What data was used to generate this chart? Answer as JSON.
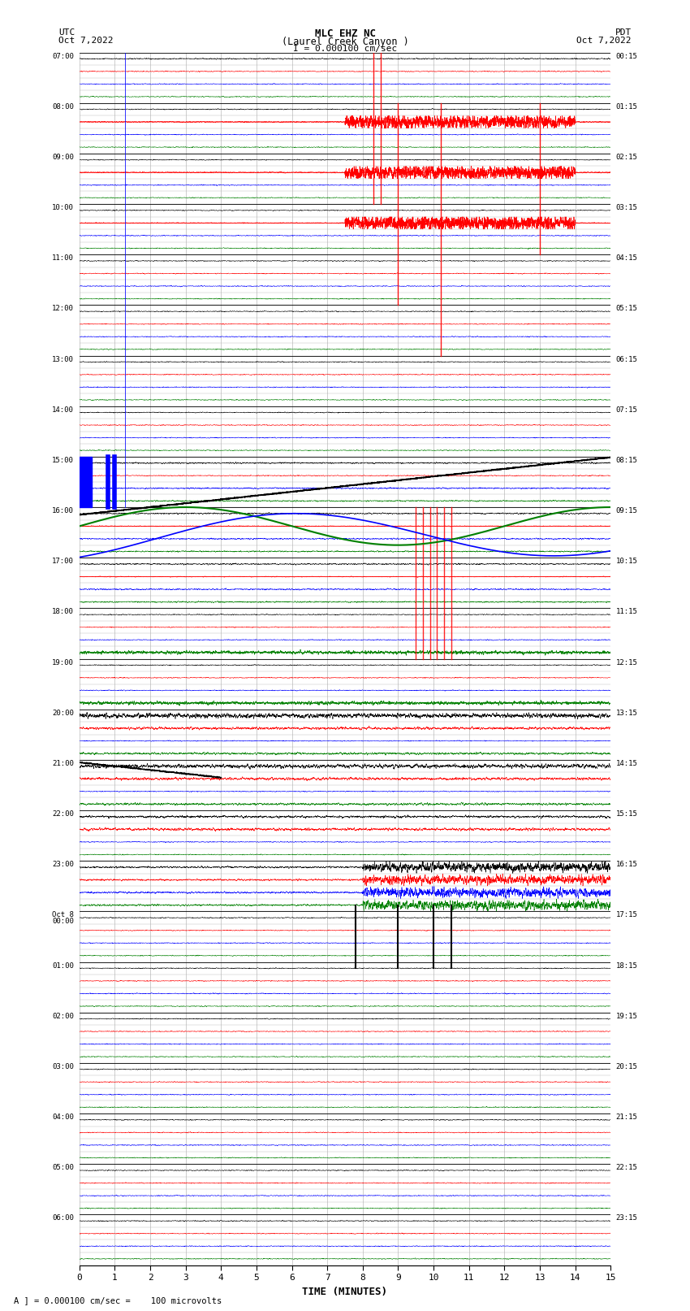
{
  "title_line1": "MLC EHZ NC",
  "title_line2": "(Laurel Creek Canyon )",
  "scale_text": "I = 0.000100 cm/sec",
  "left_header_line1": "UTC",
  "left_header_line2": "Oct 7,2022",
  "right_header_line1": "PDT",
  "right_header_line2": "Oct 7,2022",
  "xlabel": "TIME (MINUTES)",
  "footer": "A ] = 0.000100 cm/sec =    100 microvolts",
  "xlim": [
    0,
    15
  ],
  "xticks": [
    0,
    1,
    2,
    3,
    4,
    5,
    6,
    7,
    8,
    9,
    10,
    11,
    12,
    13,
    14,
    15
  ],
  "num_rows": 44,
  "bg_color": "#ffffff",
  "grid_color": "#aaaaaa",
  "seed": 42,
  "left_labels_utc": [
    "07:00",
    "",
    "",
    "",
    "08:00",
    "",
    "",
    "",
    "09:00",
    "",
    "",
    "",
    "10:00",
    "",
    "",
    "",
    "11:00",
    "",
    "",
    "",
    "12:00",
    "",
    "",
    "",
    "13:00",
    "",
    "",
    "",
    "14:00",
    "",
    "",
    "",
    "15:00",
    "",
    "",
    "",
    "16:00",
    "",
    "",
    "",
    "17:00",
    "",
    "",
    "",
    "18:00",
    "",
    "",
    "",
    "19:00",
    "",
    "",
    "",
    "20:00",
    "",
    "",
    "",
    "21:00",
    "",
    "",
    "",
    "22:00",
    "",
    "",
    "",
    "23:00",
    "",
    "",
    "",
    "Oct 8\n00:00",
    "",
    "",
    "",
    "01:00",
    "",
    "",
    "",
    "02:00",
    "",
    "",
    "",
    "03:00",
    "",
    "",
    "",
    "04:00",
    "",
    "",
    "",
    "05:00",
    "",
    "",
    "",
    "06:00",
    "",
    "",
    ""
  ],
  "right_labels_pdt": [
    "00:15",
    "",
    "",
    "",
    "01:15",
    "",
    "",
    "",
    "02:15",
    "",
    "",
    "",
    "03:15",
    "",
    "",
    "",
    "04:15",
    "",
    "",
    "",
    "05:15",
    "",
    "",
    "",
    "06:15",
    "",
    "",
    "",
    "07:15",
    "",
    "",
    "",
    "08:15",
    "",
    "",
    "",
    "09:15",
    "",
    "",
    "",
    "10:15",
    "",
    "",
    "",
    "11:15",
    "",
    "",
    "",
    "12:15",
    "",
    "",
    "",
    "13:15",
    "",
    "",
    "",
    "14:15",
    "",
    "",
    "",
    "15:15",
    "",
    "",
    "",
    "16:15",
    "",
    "",
    "",
    "17:15",
    "",
    "",
    "",
    "18:15",
    "",
    "",
    "",
    "19:15",
    "",
    "",
    "",
    "20:15",
    "",
    "",
    "",
    "21:15",
    "",
    "",
    "",
    "22:15",
    "",
    "",
    "",
    "23:15",
    "",
    "",
    ""
  ],
  "colors_cycle": [
    "black",
    "red",
    "blue",
    "green"
  ]
}
